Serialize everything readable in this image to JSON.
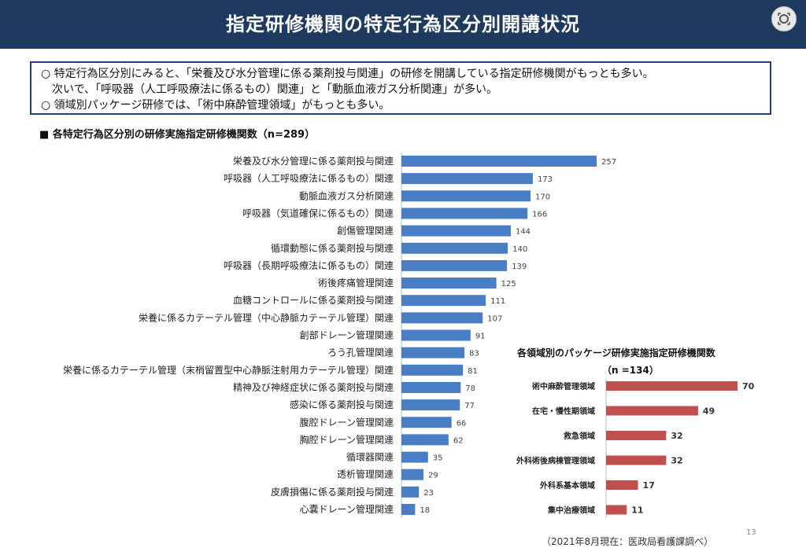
{
  "header": {
    "title": "指定研修機関の特定行為区分別開講状況"
  },
  "summary": {
    "line1": "○ 特定行為区分別にみると、「栄養及び水分管理に係る薬剤投与関連」の研修を開講している指定研修機関がもっとも多い。",
    "line2": "　次いで、「呼吸器（人工呼吸療法に係るもの）関連」と「動脈血液ガス分析関連」が多い。",
    "line3": "○ 領域別パッケージ研修では、「術中麻酔管理領域」がもっとも多い。"
  },
  "page_number": "13",
  "source_note": "（2021年8月現在：医政局看護課調べ）",
  "chart_data": [
    {
      "type": "bar",
      "orientation": "horizontal",
      "title": "■ 各特定行為区分別の研修実施指定研修機関数（n=289）",
      "color": "#4a7ec4",
      "categories": [
        "栄養及び水分管理に係る薬剤投与関連",
        "呼吸器（人工呼吸療法に係るもの）関連",
        "動脈血液ガス分析関連",
        "呼吸器（気道確保に係るもの）関連",
        "創傷管理関連",
        "循環動態に係る薬剤投与関連",
        "呼吸器（長期呼吸療法に係るもの）関連",
        "術後疼痛管理関連",
        "血糖コントロールに係る薬剤投与関連",
        "栄養に係るカテーテル管理（中心静脈カテーテル管理）関連",
        "創部ドレーン管理関連",
        "ろう孔管理関連",
        "栄養に係るカテーテル管理（末梢留置型中心静脈注射用カテーテル管理）関連",
        "精神及び神経症状に係る薬剤投与関連",
        "感染に係る薬剤投与関連",
        "腹腔ドレーン管理関連",
        "胸腔ドレーン管理関連",
        "循環器関連",
        "透析管理関連",
        "皮膚損傷に係る薬剤投与関連",
        "心嚢ドレーン管理関連"
      ],
      "values": [
        257,
        173,
        170,
        166,
        144,
        140,
        139,
        125,
        111,
        107,
        91,
        83,
        81,
        78,
        77,
        66,
        62,
        35,
        29,
        23,
        18
      ],
      "xlim": [
        0,
        257
      ]
    },
    {
      "type": "bar",
      "orientation": "horizontal",
      "title": "各領域別のパッケージ研修実施指定研修機関数",
      "subtitle": "（n =134）",
      "color": "#c0504d",
      "categories": [
        "術中麻酔管理領域",
        "在宅・慢性期領域",
        "救急領域",
        "外科術後病棟管理領域",
        "外科系基本領域",
        "集中治療領域"
      ],
      "values": [
        70,
        49,
        32,
        32,
        17,
        11
      ],
      "xlim": [
        0,
        70
      ]
    }
  ]
}
